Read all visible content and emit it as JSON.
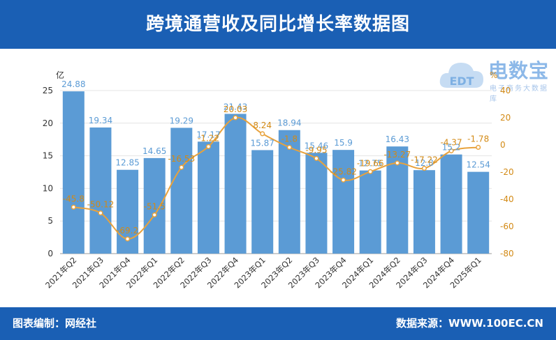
{
  "header": {
    "title": "跨境通营收及同比增长率数据图"
  },
  "footer": {
    "left": "图表编制：网经社",
    "right": "数据来源：WWW.100EC.CN"
  },
  "watermark": {
    "name": "电数宝",
    "sub": "电子商务大数据库",
    "logo_text": "EDT"
  },
  "colors": {
    "bar": "#5b9bd5",
    "line": "#e8a23c",
    "header_bg": "#1a5fb4",
    "bar_label": "#5b9bd5",
    "line_label": "#d38a15"
  },
  "chart_data": {
    "type": "bar",
    "categories": [
      "2021年Q2",
      "2021年Q3",
      "2021年Q4",
      "2022年Q1",
      "2022年Q2",
      "2022年Q3",
      "2022年Q4",
      "2023年Q1",
      "2023年Q2",
      "2023年Q3",
      "2023年Q4",
      "2024年Q1",
      "2024年Q2",
      "2024年Q3",
      "2024年Q4",
      "2025年Q1"
    ],
    "left_unit": "亿",
    "right_unit": "%",
    "left_axis": {
      "min": 0,
      "max": 25,
      "ticks": [
        0,
        5,
        10,
        15,
        20,
        25
      ]
    },
    "right_axis": {
      "min": -80,
      "max": 40,
      "ticks": [
        -80,
        -60,
        -40,
        -20,
        0,
        20,
        40
      ]
    },
    "series": [
      {
        "type": "bar",
        "axis": "left",
        "values": [
          24.88,
          19.34,
          12.85,
          14.65,
          19.29,
          17.17,
          21.43,
          15.87,
          18.94,
          15.46,
          15.9,
          12.75,
          16.43,
          12.8,
          15.2,
          12.54
        ],
        "labels": [
          "24.88",
          "19.34",
          "12.85",
          "14.65",
          "19.29",
          "17.17",
          "21.43",
          "15.87",
          "18.94",
          "15.46",
          "15.9",
          "12.75",
          "16.43",
          "12.8",
          "15.2",
          "12.54"
        ]
      },
      {
        "type": "line",
        "axis": "right",
        "values": [
          -45.8,
          -50.12,
          -69.2,
          -51.5,
          -16.53,
          -1.22,
          20.03,
          8.24,
          -1.8,
          -9.95,
          -25.82,
          -19.66,
          -13.27,
          -17.22,
          -4.37,
          -1.78
        ],
        "labels": [
          "-45.8",
          "-50.12",
          "-69.2",
          "-51.5",
          "-16.53",
          "-1.22",
          "20.03",
          "8.24",
          "-1.8",
          "-9.95",
          "-25.82",
          "-19.66",
          "-13.27",
          "-17.22",
          "-4.37",
          "-1.78"
        ]
      }
    ],
    "grid": true
  }
}
